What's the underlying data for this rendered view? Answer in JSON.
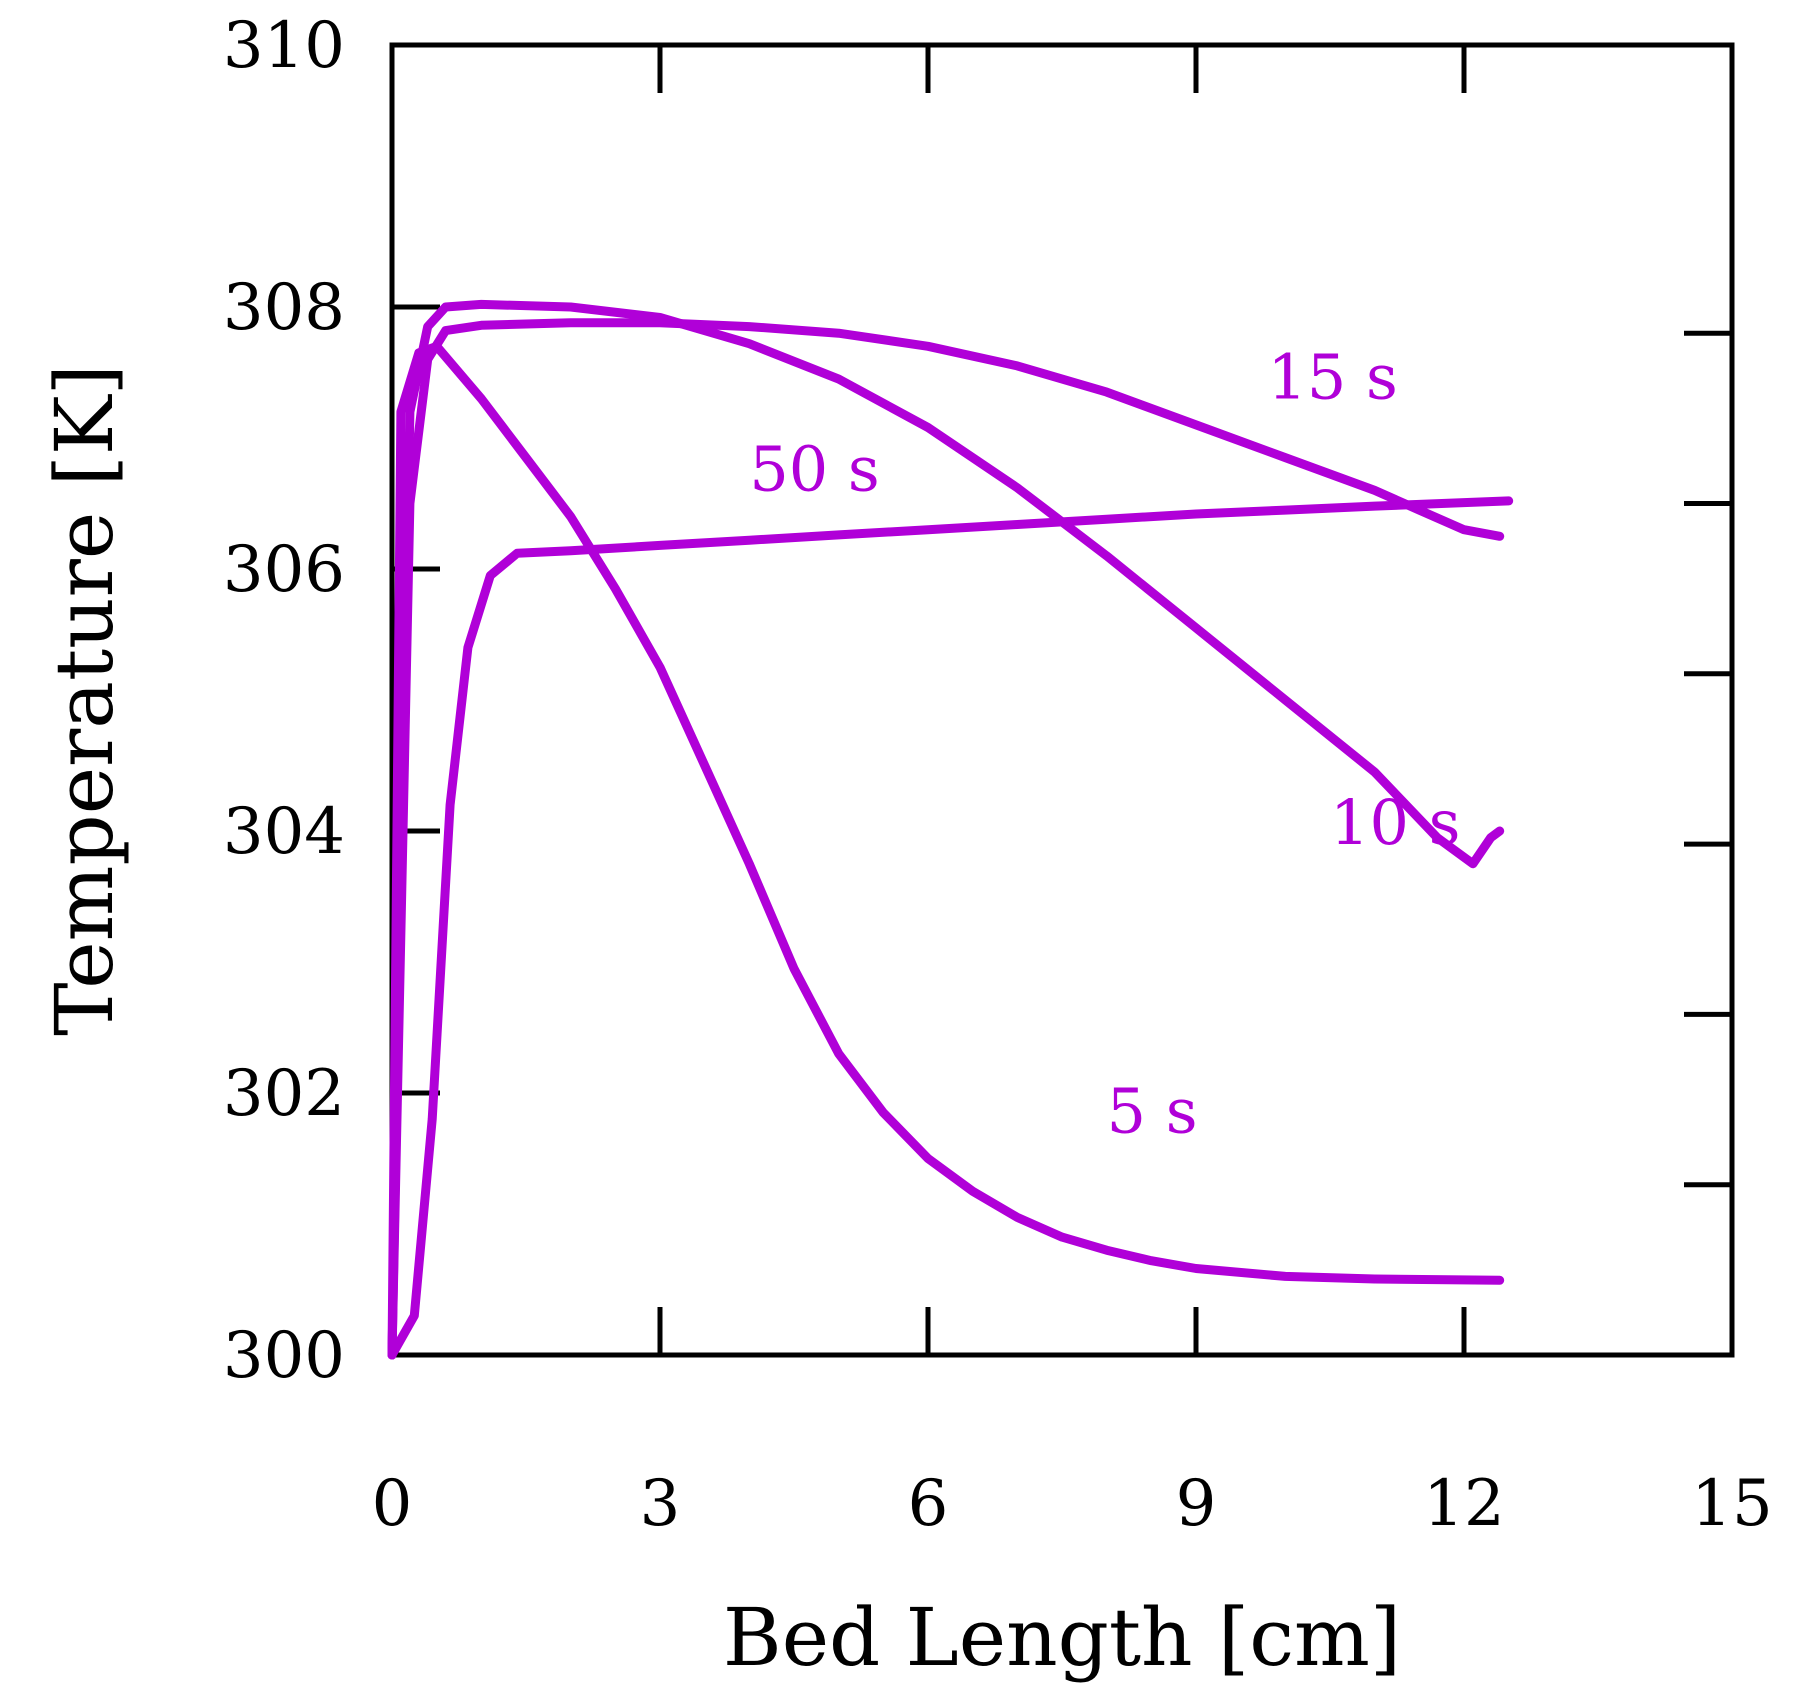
{
  "chart_data": {
    "type": "line",
    "title": "",
    "xlabel": "Bed Length [cm]",
    "ylabel": "Temperature [K]",
    "xlim": [
      0,
      15
    ],
    "ylim": [
      300,
      310
    ],
    "xticks": [
      "0",
      "3",
      "6",
      "9",
      "12",
      "15"
    ],
    "yticks": [
      "300",
      "302",
      "304",
      "306",
      "308",
      "310"
    ],
    "grid": false,
    "line_color": "#B000D8",
    "series": [
      {
        "name": "5 s",
        "points": [
          [
            0,
            300
          ],
          [
            0.1,
            307.2
          ],
          [
            0.3,
            307.65
          ],
          [
            0.5,
            307.7
          ],
          [
            1,
            307.3
          ],
          [
            1.5,
            306.85
          ],
          [
            2,
            306.4
          ],
          [
            2.5,
            305.85
          ],
          [
            3,
            305.25
          ],
          [
            3.5,
            304.5
          ],
          [
            4,
            303.75
          ],
          [
            4.5,
            302.95
          ],
          [
            5,
            302.3
          ],
          [
            5.5,
            301.85
          ],
          [
            6,
            301.5
          ],
          [
            6.5,
            301.25
          ],
          [
            7,
            301.05
          ],
          [
            7.5,
            300.9
          ],
          [
            8,
            300.8
          ],
          [
            8.5,
            300.72
          ],
          [
            9,
            300.66
          ],
          [
            10,
            300.6
          ],
          [
            11,
            300.58
          ],
          [
            12.4,
            300.57
          ]
        ]
      },
      {
        "name": "10 s",
        "points": [
          [
            0,
            300
          ],
          [
            0.2,
            307.2
          ],
          [
            0.4,
            307.85
          ],
          [
            0.6,
            308.0
          ],
          [
            1,
            308.02
          ],
          [
            2,
            308.0
          ],
          [
            3,
            307.92
          ],
          [
            4,
            307.72
          ],
          [
            5,
            307.45
          ],
          [
            6,
            307.08
          ],
          [
            7,
            306.62
          ],
          [
            8,
            306.1
          ],
          [
            9,
            305.55
          ],
          [
            10,
            305.0
          ],
          [
            11,
            304.45
          ],
          [
            11.7,
            303.95
          ],
          [
            12.1,
            303.75
          ],
          [
            12.3,
            303.95
          ],
          [
            12.4,
            304.0
          ]
        ]
      },
      {
        "name": "15 s",
        "points": [
          [
            0,
            300
          ],
          [
            0.2,
            306.5
          ],
          [
            0.4,
            307.6
          ],
          [
            0.6,
            307.82
          ],
          [
            1,
            307.86
          ],
          [
            2,
            307.88
          ],
          [
            3,
            307.88
          ],
          [
            4,
            307.85
          ],
          [
            5,
            307.8
          ],
          [
            6,
            307.7
          ],
          [
            7,
            307.55
          ],
          [
            8,
            307.35
          ],
          [
            9,
            307.1
          ],
          [
            10,
            306.85
          ],
          [
            11,
            306.6
          ],
          [
            11.5,
            306.45
          ],
          [
            12,
            306.3
          ],
          [
            12.4,
            306.25
          ]
        ]
      },
      {
        "name": "50 s",
        "points": [
          [
            0,
            300
          ],
          [
            0.25,
            300.3
          ],
          [
            0.45,
            301.8
          ],
          [
            0.65,
            304.2
          ],
          [
            0.85,
            305.4
          ],
          [
            1.1,
            305.95
          ],
          [
            1.4,
            306.12
          ],
          [
            2,
            306.14
          ],
          [
            3,
            306.18
          ],
          [
            4,
            306.22
          ],
          [
            5,
            306.26
          ],
          [
            6,
            306.3
          ],
          [
            7,
            306.34
          ],
          [
            8,
            306.38
          ],
          [
            9,
            306.42
          ],
          [
            10,
            306.45
          ],
          [
            11,
            306.48
          ],
          [
            12.5,
            306.52
          ]
        ]
      }
    ],
    "annotations": [
      {
        "text": "5 s",
        "x": 8.0,
        "y": 301.7
      },
      {
        "text": "10 s",
        "x": 10.5,
        "y": 303.9
      },
      {
        "text": "15 s",
        "x": 9.8,
        "y": 307.3
      },
      {
        "text": "50 s",
        "x": 4.0,
        "y": 306.6
      }
    ]
  }
}
